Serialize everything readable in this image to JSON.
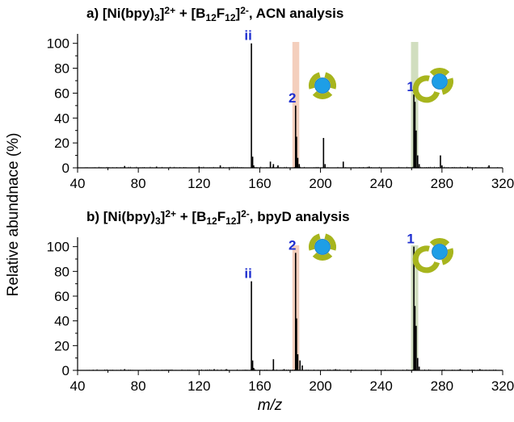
{
  "ylabel": "Relative abundnace (%)",
  "xlabel": "m/z",
  "colors": {
    "peak": "#000000",
    "highlight_green": "#c9d8b4",
    "highlight_orange": "#f2c7b2",
    "label_blue": "#1f2fd0",
    "ring": "#a7b51d",
    "core": "#1e9ee6"
  },
  "icon_names": [
    "cage-complex-icon"
  ],
  "chart_data": [
    {
      "type": "bar",
      "title": {
        "prefix": "a) [Ni(bpy)",
        "sub1": "3",
        "sup1": "2+",
        "mid": " + [B",
        "sub2": "12",
        "f": "F",
        "sub3": "12",
        "close": "]",
        "sup2": "2-",
        "suffix": ", ACN analysis"
      },
      "xlabel": "m/z",
      "ylabel": "Relative abundnace (%)",
      "xlim": [
        40,
        320
      ],
      "ylim": [
        0,
        105
      ],
      "xticks": [
        40,
        80,
        120,
        160,
        200,
        240,
        280,
        320
      ],
      "yticks": [
        0,
        20,
        40,
        60,
        80,
        100
      ],
      "peaks": [
        {
          "x": 71,
          "y": 1.5
        },
        {
          "x": 92,
          "y": 1
        },
        {
          "x": 120,
          "y": 1
        },
        {
          "x": 134,
          "y": 2
        },
        {
          "x": 154.5,
          "y": 100
        },
        {
          "x": 155.3,
          "y": 9
        },
        {
          "x": 156,
          "y": 2
        },
        {
          "x": 167,
          "y": 5
        },
        {
          "x": 169,
          "y": 3
        },
        {
          "x": 172,
          "y": 2
        },
        {
          "x": 183.6,
          "y": 50
        },
        {
          "x": 184.2,
          "y": 25
        },
        {
          "x": 185,
          "y": 8
        },
        {
          "x": 186,
          "y": 3
        },
        {
          "x": 202,
          "y": 24
        },
        {
          "x": 203,
          "y": 3
        },
        {
          "x": 215,
          "y": 5
        },
        {
          "x": 232,
          "y": 1
        },
        {
          "x": 261.5,
          "y": 59
        },
        {
          "x": 262.2,
          "y": 53
        },
        {
          "x": 263,
          "y": 30
        },
        {
          "x": 264,
          "y": 10
        },
        {
          "x": 265,
          "y": 3
        },
        {
          "x": 279,
          "y": 10
        },
        {
          "x": 280,
          "y": 2
        },
        {
          "x": 297,
          "y": 1
        },
        {
          "x": 311,
          "y": 2
        }
      ],
      "highlights": [
        {
          "x0": 181.5,
          "x1": 186,
          "color": "orange"
        },
        {
          "x0": 259.6,
          "x1": 264.4,
          "color": "green"
        }
      ],
      "labels": [
        {
          "text": "ii",
          "x": 154.5,
          "y": 100
        },
        {
          "text": "2",
          "x": 183.6,
          "y": 50
        },
        {
          "text": "1",
          "x": 261.5,
          "y": 59
        }
      ]
    },
    {
      "type": "bar",
      "title": {
        "prefix": "b) [Ni(bpy)",
        "sub1": "3",
        "sup1": "2+",
        "mid": " + [B",
        "sub2": "12",
        "f": "F",
        "sub3": "12",
        "close": "]",
        "sup2": "2-",
        "suffix": ", bpyD analysis"
      },
      "xlabel": "m/z",
      "ylabel": "Relative abundnace (%)",
      "xlim": [
        40,
        320
      ],
      "ylim": [
        0,
        105
      ],
      "xticks": [
        40,
        80,
        120,
        160,
        200,
        240,
        280,
        320
      ],
      "yticks": [
        0,
        20,
        40,
        60,
        80,
        100
      ],
      "peaks": [
        {
          "x": 71,
          "y": 1
        },
        {
          "x": 130,
          "y": 1
        },
        {
          "x": 138,
          "y": 1
        },
        {
          "x": 154.5,
          "y": 72
        },
        {
          "x": 155.3,
          "y": 8
        },
        {
          "x": 156,
          "y": 2
        },
        {
          "x": 169,
          "y": 9
        },
        {
          "x": 176,
          "y": 1
        },
        {
          "x": 183.6,
          "y": 95
        },
        {
          "x": 184.2,
          "y": 42
        },
        {
          "x": 185,
          "y": 13
        },
        {
          "x": 186.5,
          "y": 8
        },
        {
          "x": 188,
          "y": 4
        },
        {
          "x": 210,
          "y": 1
        },
        {
          "x": 261.5,
          "y": 100
        },
        {
          "x": 262.2,
          "y": 52
        },
        {
          "x": 263,
          "y": 36
        },
        {
          "x": 264,
          "y": 10
        },
        {
          "x": 265,
          "y": 3
        },
        {
          "x": 292,
          "y": 1
        },
        {
          "x": 305,
          "y": 1
        }
      ],
      "highlights": [
        {
          "x0": 181.5,
          "x1": 186,
          "color": "orange"
        },
        {
          "x0": 259.6,
          "x1": 264.4,
          "color": "green"
        }
      ],
      "labels": [
        {
          "text": "ii",
          "x": 154.5,
          "y": 72
        },
        {
          "text": "2",
          "x": 183.6,
          "y": 95
        },
        {
          "text": "1",
          "x": 261.5,
          "y": 100
        }
      ]
    }
  ]
}
